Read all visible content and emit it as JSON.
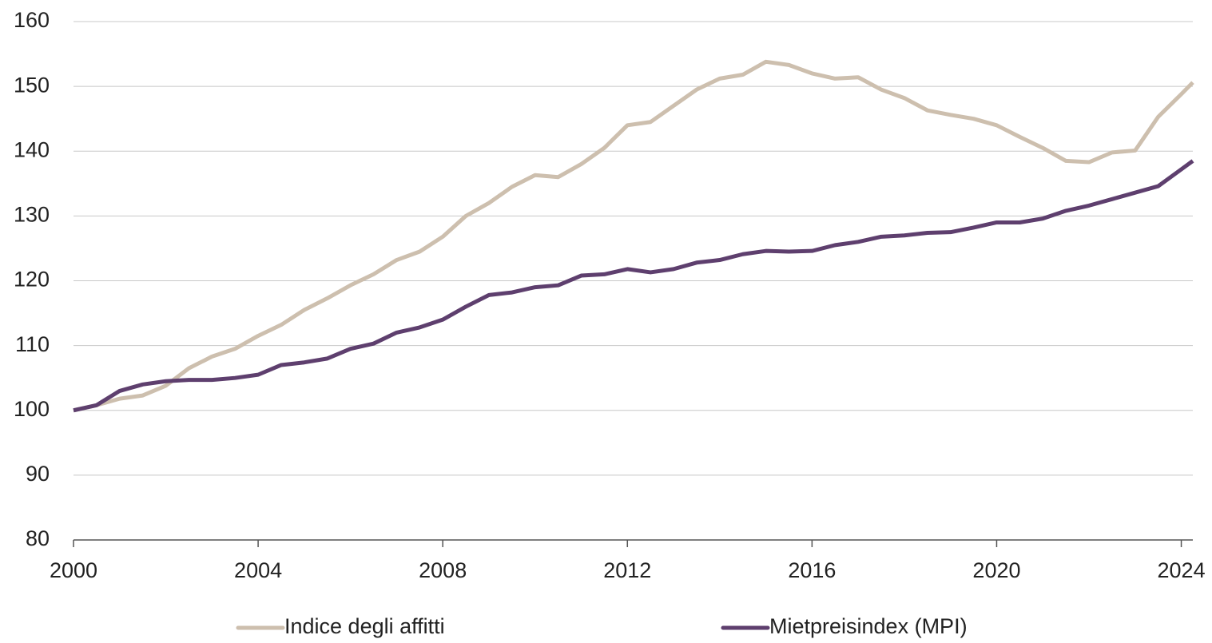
{
  "chart_data": {
    "type": "line",
    "x": [
      2000,
      2000.5,
      2001,
      2001.5,
      2002,
      2002.5,
      2003,
      2003.5,
      2004,
      2004.5,
      2005,
      2005.5,
      2006,
      2006.5,
      2007,
      2007.5,
      2008,
      2008.5,
      2009,
      2009.5,
      2010,
      2010.5,
      2011,
      2011.5,
      2012,
      2012.5,
      2013,
      2013.5,
      2014,
      2014.5,
      2015,
      2015.5,
      2016,
      2016.5,
      2017,
      2017.5,
      2018,
      2018.5,
      2019,
      2019.5,
      2020,
      2020.5,
      2021,
      2021.5,
      2022,
      2022.5,
      2023,
      2023.5,
      2024,
      2024.25
    ],
    "series": [
      {
        "name": "Indice degli affitti",
        "color": "#cdbfae",
        "values": [
          100,
          100.8,
          101.8,
          102.3,
          103.8,
          106.5,
          108.3,
          109.5,
          111.5,
          113.2,
          115.5,
          117.3,
          119.3,
          121,
          123.2,
          124.5,
          126.8,
          130,
          132,
          134.5,
          136.3,
          136,
          138,
          140.5,
          144,
          144.5,
          147,
          149.5,
          151.2,
          151.8,
          153.8,
          153.3,
          152,
          151.2,
          151.4,
          149.5,
          148.2,
          146.3,
          145.6,
          145,
          144,
          142.2,
          140.5,
          138.5,
          138.3,
          139.8,
          140.1,
          145.3,
          148.8,
          150.6
        ]
      },
      {
        "name": "Mietpreisindex (MPI)",
        "color": "#5e3f6e",
        "values": [
          100,
          100.8,
          103,
          104,
          104.5,
          104.7,
          104.7,
          105,
          105.5,
          107,
          107.4,
          108,
          109.5,
          110.3,
          112,
          112.8,
          114,
          116,
          117.8,
          118.2,
          119,
          119.3,
          120.8,
          121,
          121.8,
          121.3,
          121.8,
          122.8,
          123.2,
          124.1,
          124.6,
          124.5,
          124.6,
          125.5,
          126,
          126.8,
          127,
          127.4,
          127.5,
          128.2,
          129,
          129,
          129.6,
          130.8,
          131.6,
          132.6,
          133.6,
          134.6,
          137.2,
          138.5
        ]
      }
    ],
    "xlim": [
      2000,
      2024.25
    ],
    "xticks": [
      2000,
      2004,
      2008,
      2012,
      2016,
      2020,
      2024
    ],
    "ylim": [
      80,
      160
    ],
    "yticks": [
      80,
      90,
      100,
      110,
      120,
      130,
      140,
      150,
      160
    ],
    "grid": true,
    "legend": "bottom"
  }
}
